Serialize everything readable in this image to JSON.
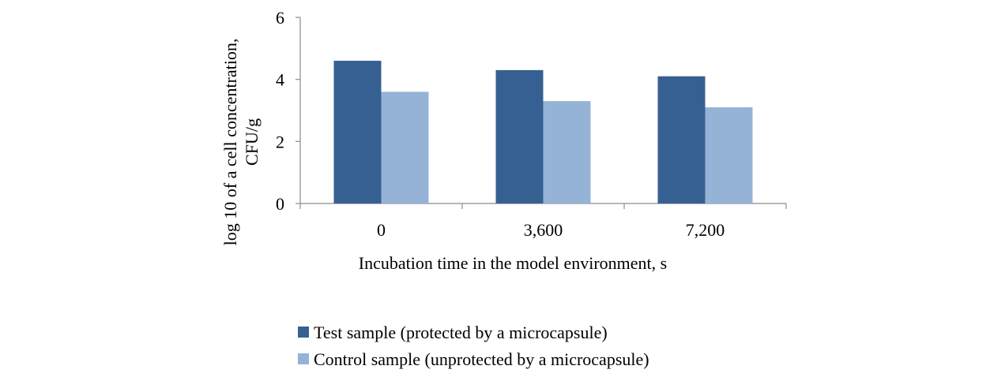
{
  "chart_data": {
    "type": "bar",
    "title": "",
    "xlabel": "Incubation time in the model environment, s",
    "ylabel": "log 10 of a cell concentration, CFU/g",
    "ylabel_lines": [
      "log 10 of a cell concentration,",
      "CFU/g"
    ],
    "categories": [
      "0",
      "3,600",
      "7,200"
    ],
    "y_ticks": [
      "0",
      "2",
      "4",
      "6"
    ],
    "ylim": [
      0,
      6
    ],
    "grid": false,
    "legend_position": "bottom",
    "series": [
      {
        "name": "Test sample (protected by a microcapsule)",
        "color": "#376092",
        "values": [
          4.6,
          4.3,
          4.1
        ]
      },
      {
        "name": "Control sample (unprotected by a microcapsule)",
        "color": "#95B3D7",
        "values": [
          3.6,
          3.3,
          3.1
        ]
      }
    ]
  }
}
